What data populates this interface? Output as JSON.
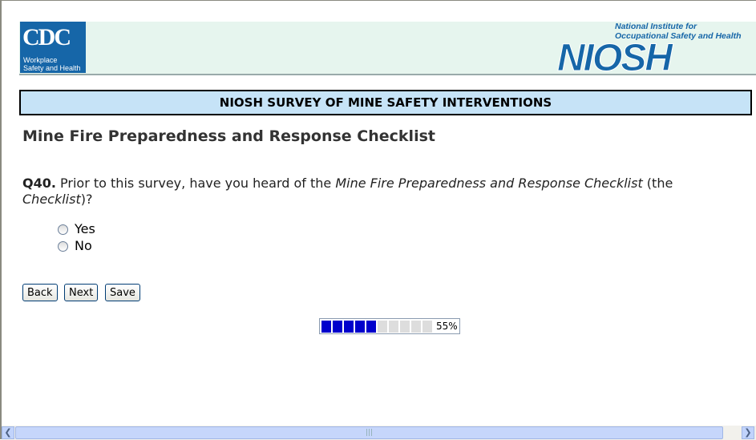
{
  "banner": {
    "cdc_logo": "CDC",
    "cdc_sub1": "Workplace",
    "cdc_sub2": "Safety and Health",
    "niosh_line1": "National Institute for",
    "niosh_line2": "Occupational Safety and Health",
    "niosh_logo": "NIOSH"
  },
  "survey_title": "NIOSH SURVEY OF MINE SAFETY INTERVENTIONS",
  "section_title": "Mine Fire Preparedness and Response Checklist",
  "question": {
    "number": "Q40.",
    "text_before": " Prior to this survey, have you heard of the ",
    "italic1": "Mine Fire Preparedness and Response Checklist",
    "text_mid": " (the ",
    "italic2": "Checklist",
    "text_after": ")?"
  },
  "options": [
    {
      "label": "Yes",
      "selected": false
    },
    {
      "label": "No",
      "selected": false
    }
  ],
  "buttons": {
    "back": "Back",
    "next": "Next",
    "save": "Save"
  },
  "progress": {
    "percent": 55,
    "label": "55%",
    "filled_color": "#0000cc",
    "empty_color": "#dddddd"
  }
}
